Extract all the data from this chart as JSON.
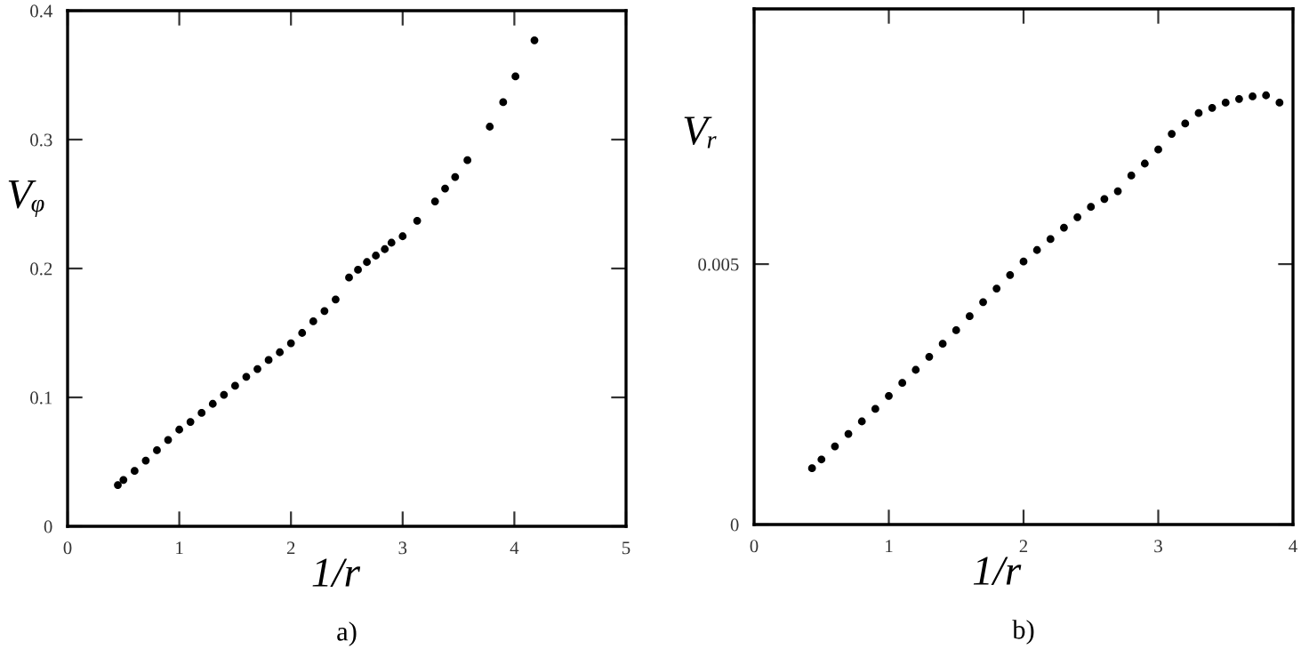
{
  "chart_data": [
    {
      "type": "scatter",
      "title": "a)",
      "xlabel": "1/r",
      "ylabel": "Vᵩ",
      "marker": "circle",
      "grid": false,
      "xlim": [
        0,
        5
      ],
      "ylim": [
        0,
        0.4
      ],
      "xticks": [
        0,
        1,
        2,
        3,
        4,
        5
      ],
      "yticks": [
        0,
        0.1,
        0.2,
        0.3,
        0.4
      ],
      "series": [
        {
          "color": "#000000",
          "x": [
            0.45,
            0.5,
            0.6,
            0.7,
            0.8,
            0.9,
            1.0,
            1.1,
            1.2,
            1.3,
            1.4,
            1.5,
            1.6,
            1.7,
            1.8,
            1.9,
            2.0,
            2.1,
            2.2,
            2.3,
            2.4,
            2.52,
            2.6,
            2.68,
            2.76,
            2.84,
            2.9,
            3.0,
            3.13,
            3.29,
            3.38,
            3.47,
            3.58,
            3.78,
            3.9,
            4.01,
            4.18
          ],
          "values": [
            0.032,
            0.036,
            0.043,
            0.051,
            0.059,
            0.067,
            0.075,
            0.081,
            0.088,
            0.095,
            0.102,
            0.109,
            0.116,
            0.122,
            0.129,
            0.135,
            0.142,
            0.15,
            0.159,
            0.167,
            0.176,
            0.193,
            0.199,
            0.205,
            0.21,
            0.215,
            0.22,
            0.225,
            0.237,
            0.252,
            0.262,
            0.271,
            0.284,
            0.31,
            0.329,
            0.349,
            0.377
          ]
        }
      ]
    },
    {
      "type": "scatter",
      "title": "b)",
      "xlabel": "1/r",
      "ylabel": "Vᵣ",
      "marker": "circle",
      "grid": false,
      "xlim": [
        0,
        4
      ],
      "ylim": [
        0,
        0.0099
      ],
      "xticks": [
        0,
        1,
        2,
        3,
        4
      ],
      "yticks": [
        0,
        0.005
      ],
      "series": [
        {
          "color": "#000000",
          "x": [
            0.43,
            0.5,
            0.6,
            0.7,
            0.8,
            0.9,
            1.0,
            1.1,
            1.2,
            1.3,
            1.4,
            1.5,
            1.6,
            1.7,
            1.8,
            1.9,
            2.0,
            2.1,
            2.2,
            2.3,
            2.4,
            2.5,
            2.6,
            2.7,
            2.8,
            2.9,
            3.0,
            3.1,
            3.2,
            3.3,
            3.4,
            3.5,
            3.6,
            3.7,
            3.8,
            3.9
          ],
          "values": [
            0.00108,
            0.00125,
            0.0015,
            0.00174,
            0.00198,
            0.00222,
            0.00247,
            0.00272,
            0.00297,
            0.00322,
            0.00347,
            0.00373,
            0.004,
            0.00427,
            0.00453,
            0.00479,
            0.00505,
            0.00527,
            0.00548,
            0.0057,
            0.0059,
            0.0061,
            0.00625,
            0.0064,
            0.0067,
            0.00693,
            0.0072,
            0.0075,
            0.0077,
            0.0079,
            0.008,
            0.0081,
            0.00817,
            0.00822,
            0.00824,
            0.0081
          ]
        }
      ]
    }
  ]
}
